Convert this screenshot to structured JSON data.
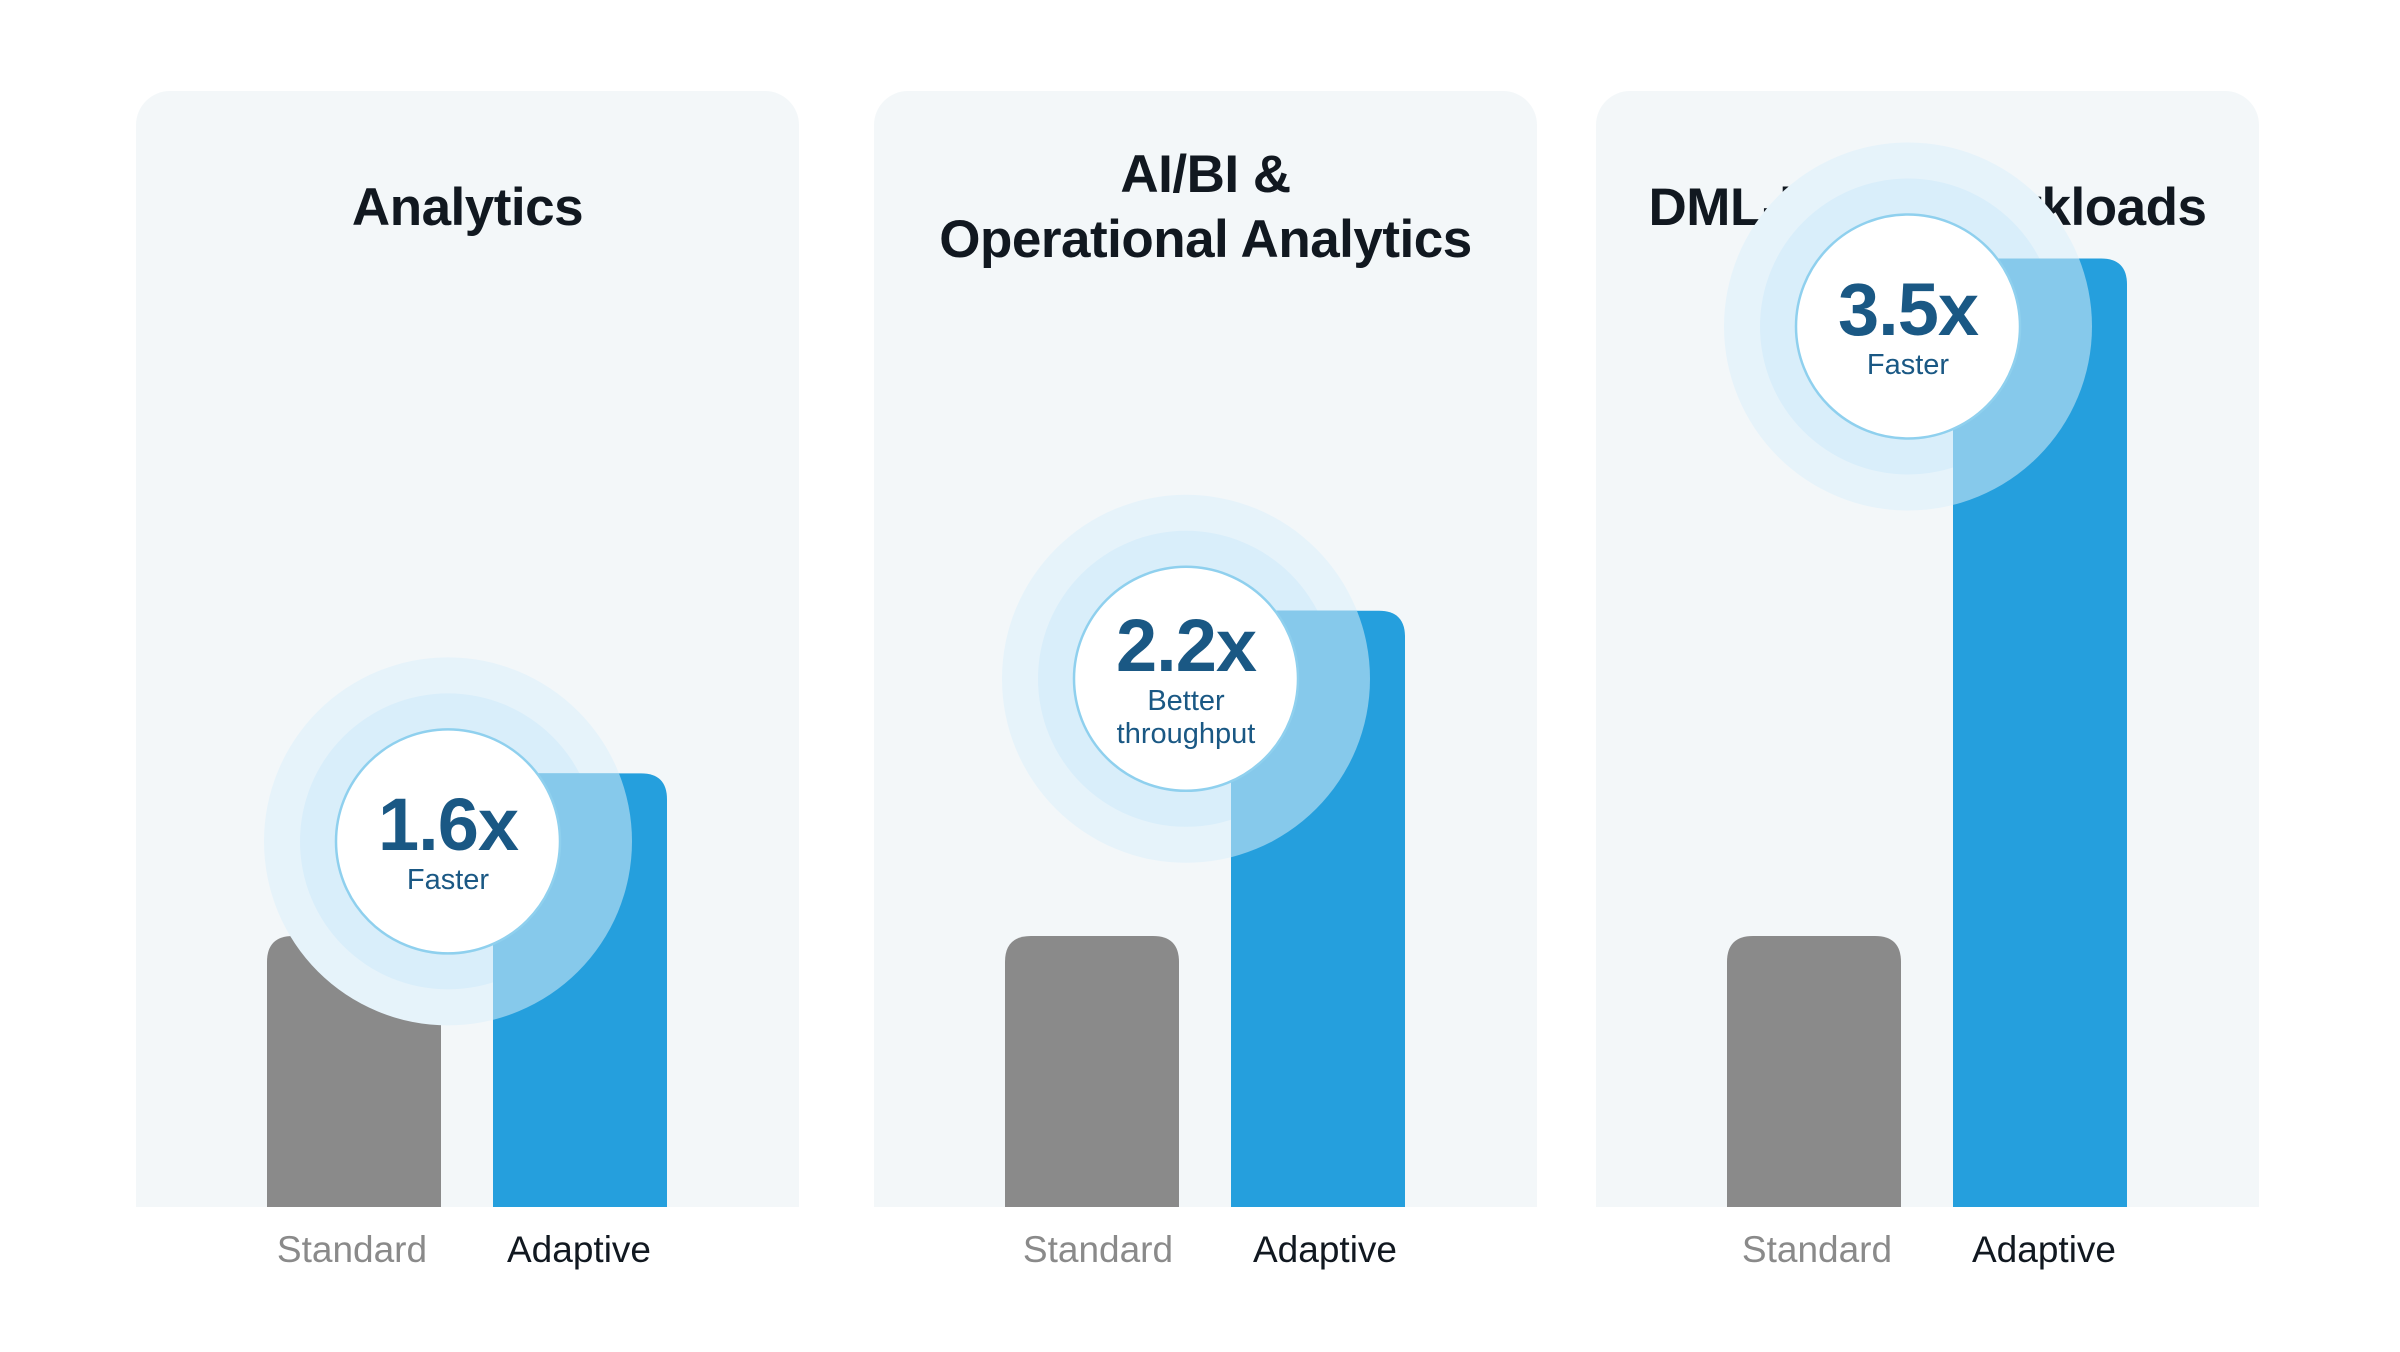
{
  "chart_data": [
    {
      "type": "bar",
      "title": "Analytics",
      "categories": [
        "Standard",
        "Adaptive"
      ],
      "values": [
        1.0,
        1.6
      ],
      "annotation": {
        "value": "1.6x",
        "caption": "Faster"
      },
      "colors": {
        "Standard": "#8a8a8a",
        "Adaptive": "#259fdd"
      }
    },
    {
      "type": "bar",
      "title": "AI/BI & Operational Analytics",
      "title_lines": [
        "AI/BI &",
        "Operational Analytics"
      ],
      "categories": [
        "Standard",
        "Adaptive"
      ],
      "values": [
        1.0,
        2.2
      ],
      "annotation": {
        "value": "2.2x",
        "caption": "Better throughput",
        "caption_lines": [
          "Better",
          "throughput"
        ]
      },
      "colors": {
        "Standard": "#8a8a8a",
        "Adaptive": "#259fdd"
      }
    },
    {
      "type": "bar",
      "title": "DML-heavy Workloads",
      "categories": [
        "Standard",
        "Adaptive"
      ],
      "values": [
        1.0,
        3.5
      ],
      "annotation": {
        "value": "3.5x",
        "caption": "Faster"
      },
      "colors": {
        "Standard": "#8a8a8a",
        "Adaptive": "#259fdd"
      }
    }
  ]
}
